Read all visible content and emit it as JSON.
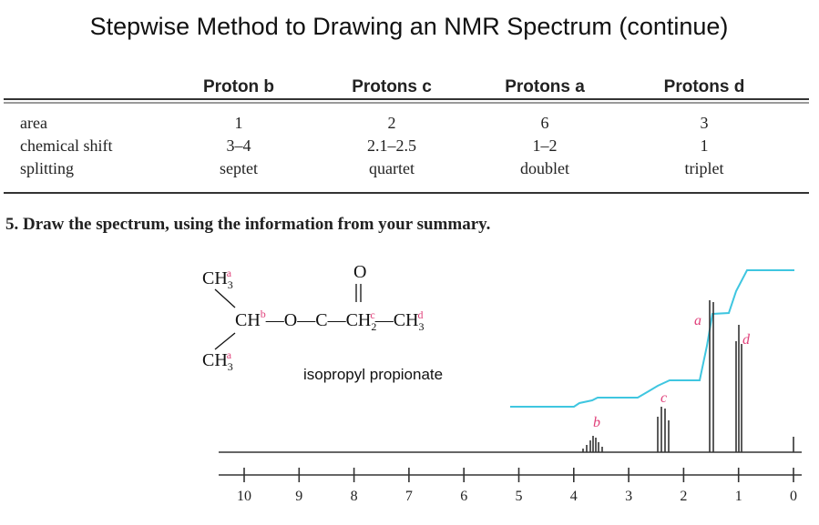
{
  "title": "Stepwise Method to Drawing an NMR Spectrum (continue)",
  "table": {
    "headers": [
      "Proton b",
      "Protons c",
      "Protons a",
      "Protons d"
    ],
    "rows": [
      [
        "area",
        "1",
        "2",
        "6",
        "3"
      ],
      [
        "chemical shift",
        "3–4",
        "2.1–2.5",
        "1–2",
        "1"
      ],
      [
        "splitting",
        "septet",
        "quartet",
        "doublet",
        "triplet"
      ]
    ]
  },
  "step": "5. Draw the spectrum, using the information from your summary.",
  "structure": {
    "carbonyl": "O",
    "top": [
      "CH",
      "3",
      "a"
    ],
    "chain": [
      "CH",
      "b",
      "—O—C—CH",
      "2",
      "c",
      "—CH",
      "3",
      "d"
    ],
    "bottom": [
      "CH",
      "3",
      "a"
    ],
    "name": "isopropyl propionate"
  },
  "spectrum": {
    "peak_labels": [
      "a",
      "b",
      "c",
      "d"
    ],
    "axis_ticks": [
      10,
      9,
      8,
      7,
      6,
      5,
      4,
      3,
      2,
      1,
      0
    ]
  }
}
